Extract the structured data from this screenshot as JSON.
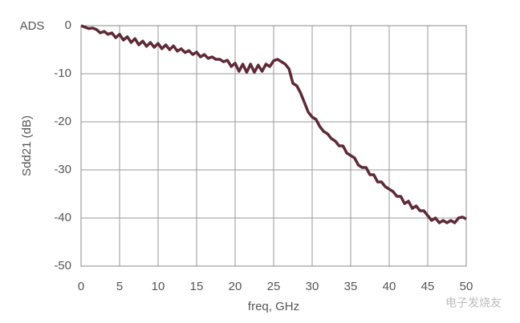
{
  "chart_data": {
    "type": "line",
    "title": "ADS",
    "x_label": "freq, GHz",
    "y_label": "Sdd21 (dB)",
    "watermark": "电子发烧友",
    "x": [
      0,
      0.5,
      1,
      1.5,
      2,
      2.5,
      3,
      3.5,
      4,
      4.5,
      5,
      5.5,
      6,
      6.5,
      7,
      7.5,
      8,
      8.5,
      9,
      9.5,
      10,
      10.5,
      11,
      11.5,
      12,
      12.5,
      13,
      13.5,
      14,
      14.5,
      15,
      15.5,
      16,
      16.5,
      17,
      17.5,
      18,
      18.5,
      19,
      19.5,
      20,
      20.5,
      21,
      21.5,
      22,
      22.5,
      23,
      23.5,
      24,
      24.5,
      25,
      25.5,
      26,
      26.5,
      27,
      27.5,
      28,
      28.5,
      29,
      29.5,
      30,
      30.5,
      31,
      31.5,
      32,
      32.5,
      33,
      33.5,
      34,
      34.5,
      35,
      35.5,
      36,
      36.5,
      37,
      37.5,
      38,
      38.5,
      39,
      39.5,
      40,
      40.5,
      41,
      41.5,
      42,
      42.5,
      43,
      43.5,
      44,
      44.5,
      45,
      45.5,
      46,
      46.5,
      47,
      47.5,
      48,
      48.5,
      49,
      49.5,
      50
    ],
    "series": [
      {
        "name": "Sdd21",
        "color": "#5e2a37",
        "values": [
          0,
          -0.3,
          -0.6,
          -0.5,
          -0.8,
          -1.5,
          -1.2,
          -1.8,
          -1.5,
          -2.5,
          -1.8,
          -3,
          -2.3,
          -3.5,
          -2.7,
          -4,
          -3.2,
          -4.3,
          -3.5,
          -4.5,
          -3.7,
          -4.8,
          -4,
          -5,
          -4.2,
          -5.3,
          -4.8,
          -5.6,
          -5.2,
          -6,
          -5.5,
          -6.5,
          -6,
          -6.8,
          -6.5,
          -7,
          -7,
          -7.5,
          -7.2,
          -8.5,
          -7.8,
          -9.5,
          -8,
          -9.7,
          -8,
          -9.7,
          -8.2,
          -9.5,
          -8,
          -8.5,
          -7.3,
          -7,
          -7.5,
          -8,
          -9,
          -12,
          -12.5,
          -14,
          -16,
          -18,
          -19,
          -19.5,
          -21,
          -22,
          -22.5,
          -23.5,
          -24,
          -25,
          -25,
          -26.5,
          -27,
          -27.5,
          -29,
          -29.5,
          -29.5,
          -31,
          -31,
          -32.5,
          -32.5,
          -33.5,
          -34,
          -34.5,
          -35.5,
          -35.5,
          -37,
          -36.5,
          -38,
          -37.5,
          -38.5,
          -38.5,
          -39.5,
          -40.5,
          -40,
          -41,
          -40.5,
          -41,
          -40.5,
          -41,
          -40,
          -39.8,
          -40.2
        ]
      }
    ],
    "xlim": [
      0,
      50
    ],
    "xticks": [
      0,
      5,
      10,
      15,
      20,
      25,
      30,
      35,
      40,
      45,
      50
    ],
    "ylim": [
      -50,
      0
    ],
    "yticks": [
      0,
      -10,
      -20,
      -30,
      -40,
      -50
    ],
    "grid": true
  }
}
